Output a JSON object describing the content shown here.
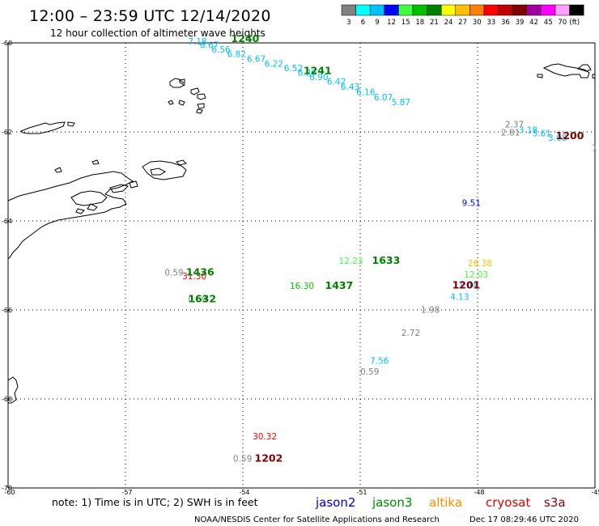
{
  "header": {
    "title": "12:00 – 23:59 UTC 12/14/2020",
    "subtitle": "12 hour collection of altimeter wave heights"
  },
  "legend": {
    "unit": "(ft)",
    "bins": [
      {
        "label": "3",
        "color": "#808080"
      },
      {
        "label": "6",
        "color": "#00ffff"
      },
      {
        "label": "9",
        "color": "#00bfff"
      },
      {
        "label": "12",
        "color": "#0000ff"
      },
      {
        "label": "15",
        "color": "#40ff40"
      },
      {
        "label": "18",
        "color": "#00c000"
      },
      {
        "label": "21",
        "color": "#008000"
      },
      {
        "label": "24",
        "color": "#ffff00"
      },
      {
        "label": "27",
        "color": "#ffc000"
      },
      {
        "label": "30",
        "color": "#ff8000"
      },
      {
        "label": "33",
        "color": "#ff0000"
      },
      {
        "label": "36",
        "color": "#c00000"
      },
      {
        "label": "39",
        "color": "#800000"
      },
      {
        "label": "42",
        "color": "#a000a0"
      },
      {
        "label": "45",
        "color": "#ff00ff"
      },
      {
        "label": "70",
        "color": "#ffa0ff"
      },
      {
        "label": "",
        "color": "#000000"
      }
    ]
  },
  "axes": {
    "lon_ticks": [
      "-60",
      "-57",
      "-54",
      "-51",
      "-48",
      "-45"
    ],
    "lat_ticks": [
      "-60",
      "-62",
      "-64",
      "-66",
      "-68",
      "-70"
    ],
    "lon_range": [
      -60,
      -45
    ],
    "lat_range": [
      -70,
      -60
    ]
  },
  "observations": [
    {
      "lon": -55.4,
      "lat": -60.04,
      "text": "7.18",
      "color": "#00bfff"
    },
    {
      "lon": -55.1,
      "lat": -60.12,
      "text": "6.67",
      "color": "#00bfff"
    },
    {
      "lon": -54.8,
      "lat": -60.22,
      "text": "6.56",
      "color": "#00bfff"
    },
    {
      "lon": -54.4,
      "lat": -60.32,
      "text": "6.82",
      "color": "#00bfff"
    },
    {
      "lon": -53.9,
      "lat": -60.43,
      "text": "6.67",
      "color": "#00bfff"
    },
    {
      "lon": -53.45,
      "lat": -60.54,
      "text": "6.22",
      "color": "#00bfff"
    },
    {
      "lon": -52.95,
      "lat": -60.64,
      "text": "6.52",
      "color": "#00bfff"
    },
    {
      "lon": -52.6,
      "lat": -60.74,
      "text": "6.28",
      "color": "#00bfff"
    },
    {
      "lon": -52.3,
      "lat": -60.84,
      "text": "6.90",
      "color": "#00bfff"
    },
    {
      "lon": -51.85,
      "lat": -60.94,
      "text": "6.42",
      "color": "#00bfff"
    },
    {
      "lon": -51.5,
      "lat": -61.05,
      "text": "6.43",
      "color": "#00bfff"
    },
    {
      "lon": -51.1,
      "lat": -61.17,
      "text": "6.16",
      "color": "#00bfff"
    },
    {
      "lon": -50.65,
      "lat": -61.29,
      "text": "6.07",
      "color": "#00bfff"
    },
    {
      "lon": -50.2,
      "lat": -61.4,
      "text": "5.87",
      "color": "#00bfff"
    },
    {
      "lon": -47.3,
      "lat": -61.9,
      "text": "2.37",
      "color": "#808080"
    },
    {
      "lon": -47.4,
      "lat": -62.08,
      "text": "2.81",
      "color": "#808080"
    },
    {
      "lon": -46.95,
      "lat": -62.03,
      "text": "3.18",
      "color": "#00bfff"
    },
    {
      "lon": -46.6,
      "lat": -62.1,
      "text": "3.61",
      "color": "#00bfff"
    },
    {
      "lon": -46.2,
      "lat": -62.2,
      "text": "3.08",
      "color": "#00bfff"
    },
    {
      "lon": -48.4,
      "lat": -63.66,
      "text": "9.51",
      "color": "#0000ff"
    },
    {
      "lon": -56.0,
      "lat": -65.23,
      "text": "0.59",
      "color": "#808080"
    },
    {
      "lon": -55.55,
      "lat": -65.31,
      "text": "31.30",
      "color": "#ff0000"
    },
    {
      "lon": -55.4,
      "lat": -65.83,
      "text": "0.59",
      "color": "#808080"
    },
    {
      "lon": -52.8,
      "lat": -65.53,
      "text": "16.30",
      "color": "#00c000"
    },
    {
      "lon": -51.55,
      "lat": -64.96,
      "text": "12.23",
      "color": "#40ff40"
    },
    {
      "lon": -48.25,
      "lat": -65.02,
      "text": "26.38",
      "color": "#ffc000"
    },
    {
      "lon": -48.35,
      "lat": -65.27,
      "text": "12.03",
      "color": "#40ff40"
    },
    {
      "lon": -48.5,
      "lat": -65.52,
      "text": "3.04",
      "color": "#00bfff"
    },
    {
      "lon": -48.7,
      "lat": -65.77,
      "text": "4.13",
      "color": "#00bfff"
    },
    {
      "lon": -49.45,
      "lat": -66.06,
      "text": "1.98",
      "color": "#808080"
    },
    {
      "lon": -49.95,
      "lat": -66.58,
      "text": "2.72",
      "color": "#808080"
    },
    {
      "lon": -50.75,
      "lat": -67.21,
      "text": "7.56",
      "color": "#00bfff"
    },
    {
      "lon": -51.0,
      "lat": -67.45,
      "text": "0.59",
      "color": "#808080"
    },
    {
      "lon": -53.75,
      "lat": -68.91,
      "text": "30.32",
      "color": "#ff0000"
    },
    {
      "lon": -54.25,
      "lat": -69.41,
      "text": "0.59",
      "color": "#808080"
    },
    {
      "lon": -45.08,
      "lat": -62.43,
      "text": "1",
      "color": "#808080"
    }
  ],
  "pass_times": [
    {
      "lon": -54.3,
      "lat": -59.98,
      "text": "1240",
      "color": "#008000"
    },
    {
      "lon": -52.45,
      "lat": -60.7,
      "text": "1241",
      "color": "#008000"
    },
    {
      "lon": -46.0,
      "lat": -62.16,
      "text": "1200",
      "color": "#800000"
    },
    {
      "lon": -50.7,
      "lat": -64.96,
      "text": "1633",
      "color": "#008000"
    },
    {
      "lon": -48.65,
      "lat": -65.52,
      "text": "1201",
      "color": "#800000"
    },
    {
      "lon": -55.45,
      "lat": -65.23,
      "text": "1436",
      "color": "#008000"
    },
    {
      "lon": -51.9,
      "lat": -65.53,
      "text": "1437",
      "color": "#008000"
    },
    {
      "lon": -55.4,
      "lat": -65.83,
      "text": "1632",
      "color": "#008000"
    },
    {
      "lon": -53.7,
      "lat": -69.41,
      "text": "1202",
      "color": "#800000"
    }
  ],
  "note": "note:  1) Time is in UTC;  2) SWH is in feet",
  "satellites": [
    {
      "name": "jason2",
      "color": "#0000cc"
    },
    {
      "name": "jason3",
      "color": "#008800"
    },
    {
      "name": "altika",
      "color": "#ff8c00"
    },
    {
      "name": "cryosat",
      "color": "#e00000"
    },
    {
      "name": "s3a",
      "color": "#8b0000"
    }
  ],
  "footer": {
    "credit": "NOAA/NESDIS Center for Satellite Applications and Research",
    "timestamp": "Dec 17 08:29:46 UTC 2020"
  }
}
